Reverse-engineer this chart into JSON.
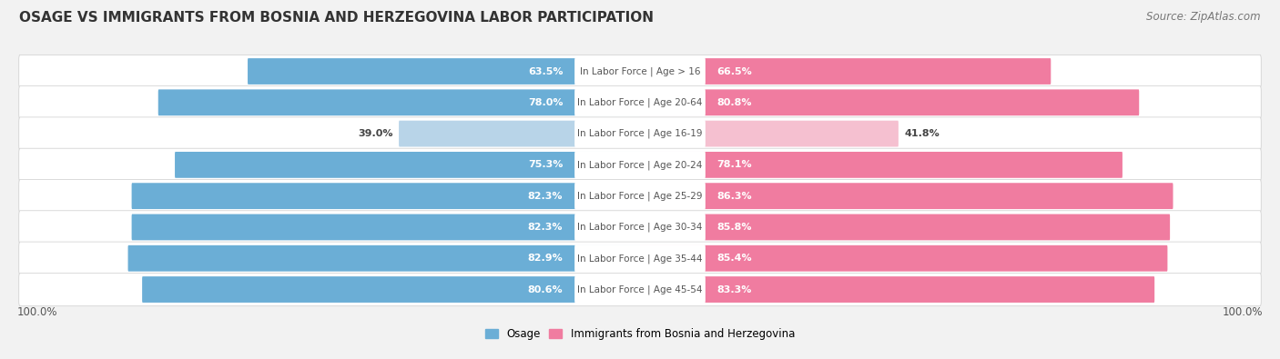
{
  "title": "OSAGE VS IMMIGRANTS FROM BOSNIA AND HERZEGOVINA LABOR PARTICIPATION",
  "source": "Source: ZipAtlas.com",
  "categories": [
    "In Labor Force | Age > 16",
    "In Labor Force | Age 20-64",
    "In Labor Force | Age 16-19",
    "In Labor Force | Age 20-24",
    "In Labor Force | Age 25-29",
    "In Labor Force | Age 30-34",
    "In Labor Force | Age 35-44",
    "In Labor Force | Age 45-54"
  ],
  "osage_values": [
    63.5,
    78.0,
    39.0,
    75.3,
    82.3,
    82.3,
    82.9,
    80.6
  ],
  "immigrant_values": [
    66.5,
    80.8,
    41.8,
    78.1,
    86.3,
    85.8,
    85.4,
    83.3
  ],
  "osage_color": "#6baed6",
  "osage_color_light": "#b8d4e8",
  "immigrant_color": "#f07ca0",
  "immigrant_color_light": "#f5c0d0",
  "label_osage": "Osage",
  "label_immigrant": "Immigrants from Bosnia and Herzegovina",
  "background_color": "#f2f2f2",
  "row_bg_color": "#e4e4e8",
  "axis_label": "100.0%",
  "title_fontsize": 11,
  "source_fontsize": 8.5,
  "bar_label_fontsize": 8,
  "category_fontsize": 7.5,
  "bar_height": 0.68,
  "max_value": 100.0,
  "light_rows": [
    "In Labor Force | Age 16-19"
  ]
}
